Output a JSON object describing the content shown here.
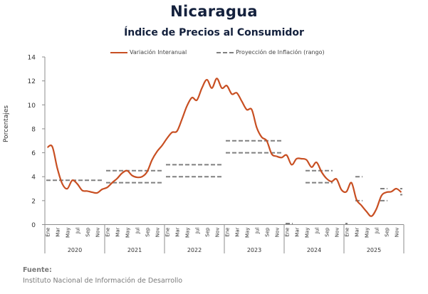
{
  "chart_data": {
    "type": "line",
    "title": "Nicaragua",
    "subtitle": "Índice de Precios al Consumidor",
    "ylabel": "Porcentajes",
    "xlabel": "",
    "ylim": [
      0,
      14
    ],
    "yticks": [
      0,
      2,
      4,
      6,
      8,
      10,
      12,
      14
    ],
    "grid": false,
    "legend_position": "top",
    "legend": [
      "Variación Interanual",
      "Proyección de Inflación (rango)"
    ],
    "years": [
      "2020",
      "2021",
      "2022",
      "2023",
      "2024",
      "2025"
    ],
    "month_tick_labels": [
      "Ene",
      "Mar",
      "May",
      "Jul",
      "Sep",
      "Nov"
    ],
    "series": [
      {
        "name": "Variación Interanual",
        "color": "#c84f22",
        "values": [
          6.45,
          6.5,
          4.7,
          3.4,
          3.0,
          3.7,
          3.4,
          2.85,
          2.8,
          2.7,
          2.65,
          2.95,
          3.1,
          3.5,
          3.85,
          4.3,
          4.5,
          4.1,
          3.95,
          4.0,
          4.4,
          5.4,
          6.1,
          6.6,
          7.2,
          7.7,
          7.8,
          8.8,
          9.9,
          10.6,
          10.4,
          11.4,
          12.1,
          11.4,
          12.2,
          11.4,
          11.6,
          10.9,
          11.0,
          10.3,
          9.6,
          9.6,
          8.1,
          7.3,
          7.0,
          5.9,
          5.7,
          5.6,
          5.8,
          5.0,
          5.5,
          5.5,
          5.4,
          4.8,
          5.2,
          4.4,
          3.85,
          3.6,
          3.8,
          2.9,
          2.75,
          3.5,
          2.1,
          1.6,
          1.1,
          0.7,
          1.3,
          2.4,
          2.7,
          2.75,
          3.0,
          2.7
        ]
      }
    ],
    "projection_segments": [
      {
        "year": "2020",
        "start_month": 0,
        "end_month": 11,
        "value": 3.7
      },
      {
        "year": "2021",
        "start_month": 0,
        "end_month": 11,
        "value": 3.5
      },
      {
        "year": "2021",
        "start_month": 0,
        "end_month": 11,
        "value": 4.5
      },
      {
        "year": "2022",
        "start_month": 0,
        "end_month": 11,
        "value": 4.0
      },
      {
        "year": "2022",
        "start_month": 0,
        "end_month": 11,
        "value": 5.0
      },
      {
        "year": "2023",
        "start_month": 0,
        "end_month": 11,
        "value": 6.0
      },
      {
        "year": "2023",
        "start_month": 0,
        "end_month": 11,
        "value": 7.0
      },
      {
        "year": "2024",
        "start_month": 0,
        "end_month": 1,
        "value": 0.0
      },
      {
        "year": "2024",
        "start_month": 4,
        "end_month": 9,
        "value": 3.5
      },
      {
        "year": "2024",
        "start_month": 4,
        "end_month": 9,
        "value": 4.5
      },
      {
        "year": "2025",
        "start_month": 0,
        "end_month": 0,
        "value": 0.0
      },
      {
        "year": "2025",
        "start_month": 2,
        "end_month": 3,
        "value": 2.0
      },
      {
        "year": "2025",
        "start_month": 2,
        "end_month": 3,
        "value": 4.0
      },
      {
        "year": "2025",
        "start_month": 7,
        "end_month": 8,
        "value": 2.0
      },
      {
        "year": "2025",
        "start_month": 7,
        "end_month": 8,
        "value": 3.0
      },
      {
        "year": "2025",
        "start_month": 11,
        "end_month": 11,
        "value": 2.5
      },
      {
        "year": "2025",
        "start_month": 11,
        "end_month": 11,
        "value": 3.0
      }
    ],
    "projection_color": "#808080"
  },
  "source": {
    "label": "Fuente:",
    "text": "Instituto Nacional de Información de Desarrollo"
  }
}
